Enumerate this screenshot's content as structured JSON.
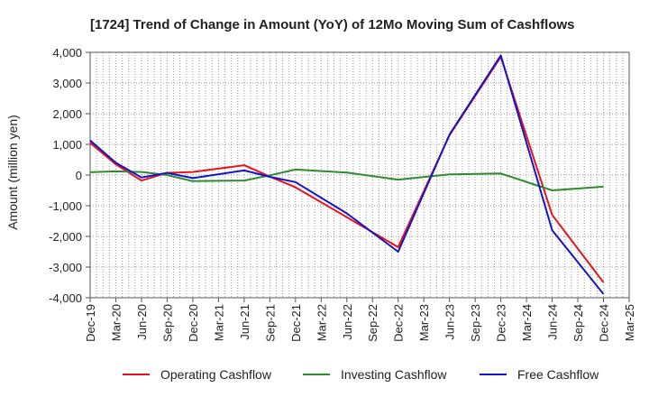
{
  "chart_data": {
    "type": "line",
    "title": "[1724]  Trend of Change in Amount (YoY) of 12Mo Moving Sum of Cashflows",
    "xlabel": "",
    "ylabel": "Amount (million yen)",
    "ylim": [
      -4000,
      4000
    ],
    "yticks": [
      4000,
      3000,
      2000,
      1000,
      0,
      -1000,
      -2000,
      -3000,
      -4000
    ],
    "ytick_labels": [
      "4,000",
      "3,000",
      "2,000",
      "1,000",
      "0",
      "-1,000",
      "-2,000",
      "-3,000",
      "-4,000"
    ],
    "categories": [
      "Dec-19",
      "Mar-20",
      "Jun-20",
      "Sep-20",
      "Dec-20",
      "Mar-21",
      "Jun-21",
      "Sep-21",
      "Dec-21",
      "Mar-22",
      "Jun-22",
      "Sep-22",
      "Dec-22",
      "Mar-23",
      "Jun-23",
      "Sep-23",
      "Dec-23",
      "Mar-24",
      "Jun-24",
      "Sep-24",
      "Dec-24",
      "Mar-25"
    ],
    "grid": true,
    "legend_position": "bottom",
    "series": [
      {
        "name": "Operating Cashflow",
        "color": "#e8141b",
        "values": [
          1050,
          350,
          -180,
          70,
          100,
          null,
          320,
          -50,
          -400,
          null,
          null,
          null,
          -2350,
          null,
          1300,
          null,
          3850,
          null,
          -1300,
          null,
          -3500,
          null
        ]
      },
      {
        "name": "Investing Cashflow",
        "color": "#2e8b2e",
        "values": [
          90,
          120,
          100,
          0,
          -200,
          null,
          -180,
          -10,
          180,
          null,
          80,
          null,
          -150,
          null,
          20,
          null,
          50,
          null,
          -500,
          null,
          -380,
          null
        ]
      },
      {
        "name": "Free Cashflow",
        "color": "#1414c8",
        "values": [
          1130,
          400,
          -80,
          70,
          -100,
          null,
          150,
          -60,
          -230,
          null,
          -1250,
          null,
          -2500,
          null,
          1320,
          null,
          3900,
          null,
          -1800,
          null,
          -3880,
          null
        ]
      }
    ]
  }
}
